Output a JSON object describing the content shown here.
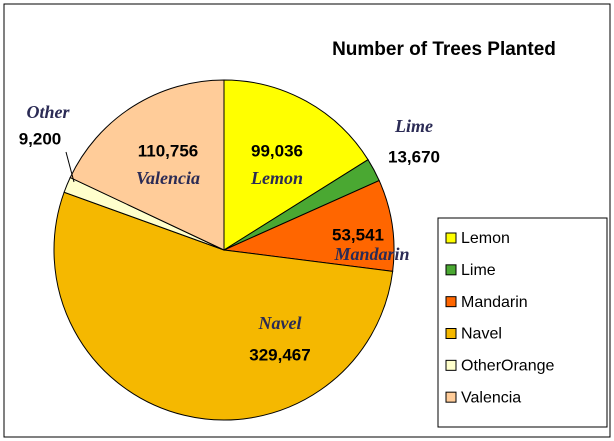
{
  "chart_data": {
    "type": "pie",
    "title": "Number of Trees Planted",
    "categories": [
      "Lemon",
      "Lime",
      "Mandarin",
      "Navel",
      "OtherOrange",
      "Valencia"
    ],
    "labels": [
      "Lemon",
      "Lime",
      "Mandarin",
      "Navel",
      "Other",
      "Valencia"
    ],
    "values": [
      99036,
      13670,
      53541,
      329467,
      9200,
      110756
    ],
    "value_labels": [
      "99,036",
      "13,670",
      "53,541",
      "329,467",
      "9,200",
      "110,756"
    ],
    "colors": [
      "#ffff00",
      "#4aa832",
      "#ff6600",
      "#f5b800",
      "#ffffcc",
      "#ffcc99"
    ],
    "legend": "right"
  }
}
